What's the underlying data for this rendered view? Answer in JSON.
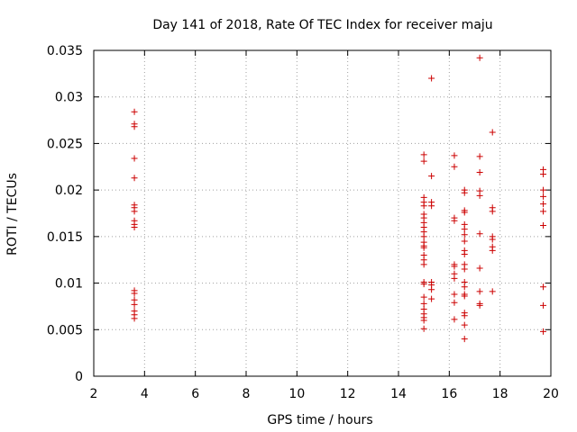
{
  "chart_data": {
    "type": "scatter",
    "title": "Day 141 of 2018, Rate Of TEC Index for receiver maju",
    "xlabel": "GPS time / hours",
    "ylabel": "ROTI / TECUs",
    "xlim": [
      2,
      20
    ],
    "ylim": [
      0,
      0.035
    ],
    "grid": true,
    "x_ticks": [
      2,
      4,
      6,
      8,
      10,
      12,
      14,
      16,
      18,
      20
    ],
    "x_tick_labels": [
      "2",
      "4",
      "6",
      "8",
      "10",
      "12",
      "14",
      "16",
      "18",
      "20"
    ],
    "y_ticks": [
      0,
      0.005,
      0.01,
      0.015,
      0.02,
      0.025,
      0.03,
      0.035
    ],
    "y_tick_labels": [
      "0",
      "0.005",
      "0.01",
      "0.015",
      "0.02",
      "0.025",
      "0.03",
      "0.035"
    ],
    "series_color": "#cc0000",
    "marker": "plus",
    "points": [
      [
        3.6,
        0.0284
      ],
      [
        3.6,
        0.0271
      ],
      [
        3.6,
        0.0268
      ],
      [
        3.6,
        0.0234
      ],
      [
        3.6,
        0.0213
      ],
      [
        3.6,
        0.0184
      ],
      [
        3.6,
        0.0181
      ],
      [
        3.6,
        0.0177
      ],
      [
        3.6,
        0.0167
      ],
      [
        3.6,
        0.0163
      ],
      [
        3.6,
        0.016
      ],
      [
        3.6,
        0.0092
      ],
      [
        3.6,
        0.0089
      ],
      [
        3.6,
        0.0082
      ],
      [
        3.6,
        0.0077
      ],
      [
        3.6,
        0.007
      ],
      [
        3.6,
        0.0066
      ],
      [
        3.6,
        0.0062
      ],
      [
        15.0,
        0.0238
      ],
      [
        15.0,
        0.0231
      ],
      [
        15.0,
        0.0192
      ],
      [
        15.0,
        0.0187
      ],
      [
        15.0,
        0.0183
      ],
      [
        15.0,
        0.0174
      ],
      [
        15.0,
        0.017
      ],
      [
        15.0,
        0.0165
      ],
      [
        15.0,
        0.016
      ],
      [
        15.0,
        0.0155
      ],
      [
        15.0,
        0.015
      ],
      [
        15.0,
        0.0144
      ],
      [
        15.0,
        0.014
      ],
      [
        15.0,
        0.0138
      ],
      [
        15.0,
        0.013
      ],
      [
        15.0,
        0.0125
      ],
      [
        15.0,
        0.012
      ],
      [
        15.0,
        0.0101
      ],
      [
        15.0,
        0.0099
      ],
      [
        15.0,
        0.0085
      ],
      [
        15.0,
        0.0078
      ],
      [
        15.0,
        0.0072
      ],
      [
        15.0,
        0.0067
      ],
      [
        15.0,
        0.0063
      ],
      [
        15.0,
        0.006
      ],
      [
        15.0,
        0.0051
      ],
      [
        15.3,
        0.032
      ],
      [
        15.3,
        0.0215
      ],
      [
        15.3,
        0.0187
      ],
      [
        15.3,
        0.0183
      ],
      [
        15.3,
        0.0101
      ],
      [
        15.3,
        0.0098
      ],
      [
        15.3,
        0.0093
      ],
      [
        15.3,
        0.0083
      ],
      [
        16.2,
        0.0237
      ],
      [
        16.2,
        0.0225
      ],
      [
        16.2,
        0.017
      ],
      [
        16.2,
        0.0167
      ],
      [
        16.2,
        0.012
      ],
      [
        16.2,
        0.0118
      ],
      [
        16.2,
        0.011
      ],
      [
        16.2,
        0.0105
      ],
      [
        16.2,
        0.0088
      ],
      [
        16.2,
        0.0079
      ],
      [
        16.2,
        0.0061
      ],
      [
        16.6,
        0.02
      ],
      [
        16.6,
        0.0197
      ],
      [
        16.6,
        0.0178
      ],
      [
        16.6,
        0.0176
      ],
      [
        16.6,
        0.0163
      ],
      [
        16.6,
        0.0158
      ],
      [
        16.6,
        0.0152
      ],
      [
        16.6,
        0.0145
      ],
      [
        16.6,
        0.0135
      ],
      [
        16.6,
        0.0131
      ],
      [
        16.6,
        0.012
      ],
      [
        16.6,
        0.0115
      ],
      [
        16.6,
        0.0101
      ],
      [
        16.6,
        0.0096
      ],
      [
        16.6,
        0.0088
      ],
      [
        16.6,
        0.0086
      ],
      [
        16.6,
        0.0068
      ],
      [
        16.6,
        0.0065
      ],
      [
        16.6,
        0.0055
      ],
      [
        16.6,
        0.004
      ],
      [
        17.2,
        0.0342
      ],
      [
        17.2,
        0.0236
      ],
      [
        17.2,
        0.0219
      ],
      [
        17.2,
        0.0199
      ],
      [
        17.2,
        0.0194
      ],
      [
        17.2,
        0.0153
      ],
      [
        17.2,
        0.0116
      ],
      [
        17.2,
        0.0091
      ],
      [
        17.2,
        0.0078
      ],
      [
        17.2,
        0.0076
      ],
      [
        17.7,
        0.0262
      ],
      [
        17.7,
        0.0181
      ],
      [
        17.7,
        0.0177
      ],
      [
        17.7,
        0.015
      ],
      [
        17.7,
        0.0147
      ],
      [
        17.7,
        0.0139
      ],
      [
        17.7,
        0.0135
      ],
      [
        17.7,
        0.0091
      ],
      [
        19.7,
        0.0222
      ],
      [
        19.7,
        0.0217
      ],
      [
        19.7,
        0.02
      ],
      [
        19.7,
        0.0193
      ],
      [
        19.7,
        0.0185
      ],
      [
        19.7,
        0.0177
      ],
      [
        19.7,
        0.0162
      ],
      [
        19.7,
        0.0096
      ],
      [
        19.7,
        0.0076
      ],
      [
        19.7,
        0.0048
      ]
    ]
  }
}
